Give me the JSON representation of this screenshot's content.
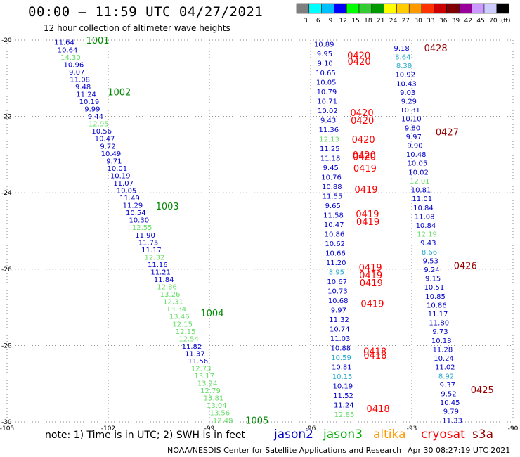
{
  "header": {
    "title": "00:00 – 11:59 UTC 04/27/2021",
    "subtitle": "12 hour collection of altimeter wave heights"
  },
  "colorbar": {
    "swatches": [
      "#7f7f7f",
      "#00ffff",
      "#00bfff",
      "#0000ff",
      "#00ff00",
      "#33cc33",
      "#009900",
      "#ffff00",
      "#ffcc00",
      "#ff9900",
      "#ff3300",
      "#cc0000",
      "#800000",
      "#990099",
      "#cc99ff",
      "#ccccff",
      "#000000"
    ],
    "labels": [
      "3",
      "6",
      "9",
      "12",
      "15",
      "18",
      "21",
      "24",
      "27",
      "30",
      "33",
      "36",
      "39",
      "42",
      "45",
      "70",
      "(ft)"
    ]
  },
  "axes": {
    "lon": {
      "min": -105,
      "max": -90,
      "ticks": [
        -105,
        -102,
        -99,
        -96,
        -93,
        -90
      ]
    },
    "lat": {
      "min": -30,
      "max": -20,
      "ticks": [
        -20,
        -22,
        -24,
        -26,
        -28,
        -30
      ]
    },
    "tick_labels_x": [
      "-105",
      "-102",
      "-99",
      "-96",
      "-93",
      "-90"
    ],
    "tick_labels_y": [
      "-20",
      "-22",
      "-24",
      "-26",
      "-28",
      "-30"
    ]
  },
  "colors": {
    "blue": "#0000cc",
    "lightgreen": "#66dd66",
    "darkgreen": "#008800",
    "red": "#ff0000",
    "darkred": "#990000",
    "cyan": "#22aacc",
    "orange": "#ff9900",
    "grid": "#888888"
  },
  "chart_data": {
    "type": "scatter",
    "title": "00:00 – 11:59 UTC 04/27/2021",
    "subtitle": "12 hour collection of altimeter wave heights",
    "xlabel": "",
    "ylabel": "",
    "xlim": [
      -105,
      -90
    ],
    "ylim": [
      -30,
      -20
    ],
    "grid": true,
    "tracks": [
      {
        "lon_start": -103.3,
        "lon_end": -98.6,
        "lat_start": -20.05,
        "lat_end": -29.95,
        "values": [
          {
            "v": "11.64",
            "c": "blue"
          },
          {
            "v": "10.64",
            "c": "blue"
          },
          {
            "v": "14.30",
            "c": "lightgreen"
          },
          {
            "v": "10.96",
            "c": "blue"
          },
          {
            "v": "9.07",
            "c": "blue"
          },
          {
            "v": "11.08",
            "c": "blue"
          },
          {
            "v": "9.48",
            "c": "blue"
          },
          {
            "v": "11.24",
            "c": "blue"
          },
          {
            "v": "10.19",
            "c": "blue"
          },
          {
            "v": "9.99",
            "c": "blue"
          },
          {
            "v": "9.44",
            "c": "blue"
          },
          {
            "v": "12.95",
            "c": "lightgreen"
          },
          {
            "v": "10.56",
            "c": "blue"
          },
          {
            "v": "10.47",
            "c": "blue"
          },
          {
            "v": "9.72",
            "c": "blue"
          },
          {
            "v": "10.49",
            "c": "blue"
          },
          {
            "v": "9.71",
            "c": "blue"
          },
          {
            "v": "10.01",
            "c": "blue"
          },
          {
            "v": "10.19",
            "c": "blue"
          },
          {
            "v": "11.07",
            "c": "blue"
          },
          {
            "v": "10.05",
            "c": "blue"
          },
          {
            "v": "11.49",
            "c": "blue"
          },
          {
            "v": "11.29",
            "c": "blue"
          },
          {
            "v": "10.54",
            "c": "blue"
          },
          {
            "v": "10.30",
            "c": "blue"
          },
          {
            "v": "12.55",
            "c": "lightgreen"
          },
          {
            "v": "11.90",
            "c": "blue"
          },
          {
            "v": "11.75",
            "c": "blue"
          },
          {
            "v": "11.17",
            "c": "blue"
          },
          {
            "v": "12.32",
            "c": "lightgreen"
          },
          {
            "v": "11.16",
            "c": "blue"
          },
          {
            "v": "11.21",
            "c": "blue"
          },
          {
            "v": "11.84",
            "c": "blue"
          },
          {
            "v": "12.86",
            "c": "lightgreen"
          },
          {
            "v": "13.26",
            "c": "lightgreen"
          },
          {
            "v": "12.31",
            "c": "lightgreen"
          },
          {
            "v": "13.34",
            "c": "lightgreen"
          },
          {
            "v": "13.46",
            "c": "lightgreen"
          },
          {
            "v": "12.15",
            "c": "lightgreen"
          },
          {
            "v": "12.15",
            "c": "lightgreen"
          },
          {
            "v": "12.54",
            "c": "lightgreen"
          },
          {
            "v": "11.82",
            "c": "blue"
          },
          {
            "v": "11.37",
            "c": "blue"
          },
          {
            "v": "11.56",
            "c": "blue"
          },
          {
            "v": "12.73",
            "c": "lightgreen"
          },
          {
            "v": "13.17",
            "c": "lightgreen"
          },
          {
            "v": "13.24",
            "c": "lightgreen"
          },
          {
            "v": "12.79",
            "c": "lightgreen"
          },
          {
            "v": "13.81",
            "c": "lightgreen"
          },
          {
            "v": "13.04",
            "c": "lightgreen"
          },
          {
            "v": "13.56",
            "c": "lightgreen"
          },
          {
            "v": "12.49",
            "c": "lightgreen"
          }
        ],
        "labels": [
          {
            "text": "1001",
            "lat": -20.0,
            "color": "darkgreen"
          },
          {
            "text": "1002",
            "lat": -21.35,
            "color": "darkgreen"
          },
          {
            "text": "1003",
            "lat": -24.35,
            "color": "darkgreen"
          },
          {
            "text": "1004",
            "lat": -27.15,
            "color": "darkgreen"
          },
          {
            "text": "1005",
            "lat": -29.95,
            "color": "darkgreen"
          }
        ]
      },
      {
        "lon_start": -95.6,
        "lon_end": -95.0,
        "lat_start": -20.1,
        "lat_end": -29.8,
        "values": [
          {
            "v": "10.89",
            "c": "blue"
          },
          {
            "v": "9.95",
            "c": "blue"
          },
          {
            "v": "9.10",
            "c": "blue"
          },
          {
            "v": "10.65",
            "c": "blue"
          },
          {
            "v": "10.05",
            "c": "blue"
          },
          {
            "v": "10.79",
            "c": "blue"
          },
          {
            "v": "10.71",
            "c": "blue"
          },
          {
            "v": "10.02",
            "c": "blue"
          },
          {
            "v": "9.43",
            "c": "blue"
          },
          {
            "v": "11.36",
            "c": "blue"
          },
          {
            "v": "12.13",
            "c": "lightgreen"
          },
          {
            "v": "11.25",
            "c": "blue"
          },
          {
            "v": "11.18",
            "c": "blue"
          },
          {
            "v": "9.45",
            "c": "blue"
          },
          {
            "v": "10.76",
            "c": "blue"
          },
          {
            "v": "10.88",
            "c": "blue"
          },
          {
            "v": "11.55",
            "c": "blue"
          },
          {
            "v": "9.65",
            "c": "blue"
          },
          {
            "v": "11.58",
            "c": "blue"
          },
          {
            "v": "10.47",
            "c": "blue"
          },
          {
            "v": "10.86",
            "c": "blue"
          },
          {
            "v": "10.62",
            "c": "blue"
          },
          {
            "v": "10.66",
            "c": "blue"
          },
          {
            "v": "11.20",
            "c": "blue"
          },
          {
            "v": "8.95",
            "c": "cyan"
          },
          {
            "v": "10.67",
            "c": "blue"
          },
          {
            "v": "10.73",
            "c": "blue"
          },
          {
            "v": "10.68",
            "c": "blue"
          },
          {
            "v": "9.97",
            "c": "blue"
          },
          {
            "v": "11.32",
            "c": "blue"
          },
          {
            "v": "10.74",
            "c": "blue"
          },
          {
            "v": "11.03",
            "c": "blue"
          },
          {
            "v": "10.88",
            "c": "blue"
          },
          {
            "v": "10.59",
            "c": "cyan"
          },
          {
            "v": "10.81",
            "c": "blue"
          },
          {
            "v": "10.15",
            "c": "cyan"
          },
          {
            "v": "10.19",
            "c": "blue"
          },
          {
            "v": "11.52",
            "c": "blue"
          },
          {
            "v": "11.24",
            "c": "blue"
          },
          {
            "v": "12.85",
            "c": "lightgreen"
          }
        ],
        "labels": [
          {
            "text": "0420",
            "lat": -20.4,
            "color": "red"
          },
          {
            "text": "0420",
            "lat": -20.55,
            "color": "red"
          },
          {
            "text": "0420",
            "lat": -21.9,
            "color": "red"
          },
          {
            "text": "0420",
            "lat": -22.1,
            "color": "red"
          },
          {
            "text": "0420",
            "lat": -22.6,
            "color": "red"
          },
          {
            "text": "0420",
            "lat": -23.0,
            "color": "red"
          },
          {
            "text": "0420",
            "lat": -23.05,
            "color": "red"
          },
          {
            "text": "0419",
            "lat": -23.35,
            "color": "red"
          },
          {
            "text": "0419",
            "lat": -23.9,
            "color": "red"
          },
          {
            "text": "0419",
            "lat": -24.55,
            "color": "red"
          },
          {
            "text": "0419",
            "lat": -24.75,
            "color": "red"
          },
          {
            "text": "0419",
            "lat": -25.95,
            "color": "red"
          },
          {
            "text": "0419",
            "lat": -26.15,
            "color": "red"
          },
          {
            "text": "0419",
            "lat": -26.35,
            "color": "red"
          },
          {
            "text": "0419",
            "lat": -26.9,
            "color": "red"
          },
          {
            "text": "0418",
            "lat": -28.15,
            "color": "red"
          },
          {
            "text": "0418",
            "lat": -28.25,
            "color": "red"
          },
          {
            "text": "0418",
            "lat": -29.65,
            "color": "red"
          }
        ]
      },
      {
        "lon_start": -93.3,
        "lon_end": -91.8,
        "lat_start": -20.2,
        "lat_end": -29.95,
        "values": [
          {
            "v": "9.18",
            "c": "blue"
          },
          {
            "v": "8.64",
            "c": "cyan"
          },
          {
            "v": "8.38",
            "c": "cyan"
          },
          {
            "v": "10.92",
            "c": "blue"
          },
          {
            "v": "10.43",
            "c": "blue"
          },
          {
            "v": "9.03",
            "c": "blue"
          },
          {
            "v": "9.29",
            "c": "blue"
          },
          {
            "v": "10.31",
            "c": "blue"
          },
          {
            "v": "10.10",
            "c": "blue"
          },
          {
            "v": "9.80",
            "c": "blue"
          },
          {
            "v": "9.97",
            "c": "blue"
          },
          {
            "v": "9.90",
            "c": "blue"
          },
          {
            "v": "10.48",
            "c": "blue"
          },
          {
            "v": "10.05",
            "c": "blue"
          },
          {
            "v": "10.02",
            "c": "blue"
          },
          {
            "v": "12.01",
            "c": "lightgreen"
          },
          {
            "v": "10.81",
            "c": "blue"
          },
          {
            "v": "11.01",
            "c": "blue"
          },
          {
            "v": "10.84",
            "c": "blue"
          },
          {
            "v": "11.08",
            "c": "blue"
          },
          {
            "v": "10.84",
            "c": "blue"
          },
          {
            "v": "12.19",
            "c": "lightgreen"
          },
          {
            "v": "9.43",
            "c": "blue"
          },
          {
            "v": "8.66",
            "c": "cyan"
          },
          {
            "v": "9.53",
            "c": "blue"
          },
          {
            "v": "9.24",
            "c": "blue"
          },
          {
            "v": "9.15",
            "c": "blue"
          },
          {
            "v": "10.51",
            "c": "blue"
          },
          {
            "v": "10.85",
            "c": "blue"
          },
          {
            "v": "10.86",
            "c": "blue"
          },
          {
            "v": "11.17",
            "c": "blue"
          },
          {
            "v": "11.80",
            "c": "blue"
          },
          {
            "v": "9.73",
            "c": "blue"
          },
          {
            "v": "10.18",
            "c": "blue"
          },
          {
            "v": "11.28",
            "c": "blue"
          },
          {
            "v": "10.24",
            "c": "blue"
          },
          {
            "v": "11.02",
            "c": "blue"
          },
          {
            "v": "8.92",
            "c": "cyan"
          },
          {
            "v": "9.37",
            "c": "blue"
          },
          {
            "v": "9.52",
            "c": "blue"
          },
          {
            "v": "10.45",
            "c": "blue"
          },
          {
            "v": "9.79",
            "c": "blue"
          },
          {
            "v": "11.33",
            "c": "blue"
          }
        ],
        "labels": [
          {
            "text": "0428",
            "lat": -20.2,
            "color": "darkred"
          },
          {
            "text": "0427",
            "lat": -22.4,
            "color": "darkred"
          },
          {
            "text": "0426",
            "lat": -25.9,
            "color": "darkred"
          },
          {
            "text": "0425",
            "lat": -29.15,
            "color": "darkred"
          }
        ]
      }
    ]
  },
  "footer": {
    "note": "note:  1) Time is in UTC; 2) SWH is in feet",
    "legend": [
      {
        "name": "jason2",
        "color": "#0000cc"
      },
      {
        "name": "jason3",
        "color": "#00aa00"
      },
      {
        "name": "altika",
        "color": "#ff9900"
      },
      {
        "name": "cryosat",
        "color": "#ff0000"
      },
      {
        "name": "s3a",
        "color": "#990000"
      }
    ],
    "credit": "NOAA/NESDIS Center for Satellite Applications and Research",
    "stamp": "Apr 30 08:27:19 UTC 2021"
  }
}
